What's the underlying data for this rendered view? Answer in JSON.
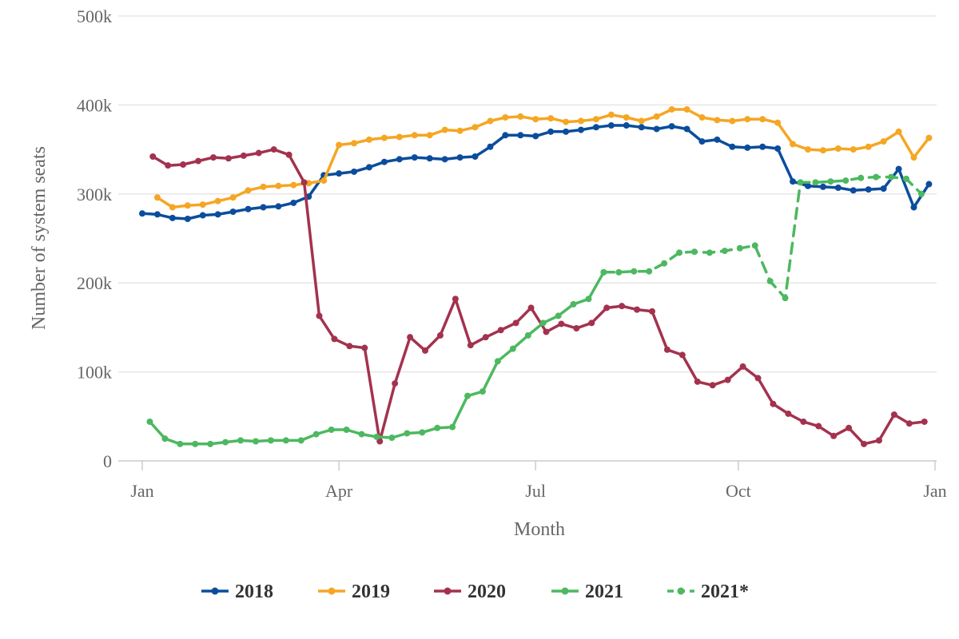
{
  "chart_data": {
    "type": "line",
    "xlabel": "Month",
    "ylabel": "Number of system seats",
    "ylim": [
      0,
      500000
    ],
    "y_ticks": [
      {
        "value": 0,
        "label": "0"
      },
      {
        "value": 100000,
        "label": "100k"
      },
      {
        "value": 200000,
        "label": "200k"
      },
      {
        "value": 300000,
        "label": "300k"
      },
      {
        "value": 400000,
        "label": "400k"
      },
      {
        "value": 500000,
        "label": "500k"
      }
    ],
    "x_ticks": [
      {
        "week": 0,
        "label": "Jan"
      },
      {
        "week": 13,
        "label": "Apr"
      },
      {
        "week": 26,
        "label": "Jul"
      },
      {
        "week": 39.4,
        "label": "Oct"
      },
      {
        "week": 52.4,
        "label": "Jan"
      }
    ],
    "x_unit": "week of year",
    "grid": "horizontal",
    "legend_position": "bottom",
    "series": [
      {
        "name": "2018",
        "color": "#0b4d9c",
        "dashed": false,
        "x": [
          0,
          1,
          2,
          3,
          4,
          5,
          6,
          7,
          8,
          9,
          10,
          11,
          12,
          13,
          14,
          15,
          16,
          17,
          18,
          19,
          20,
          21,
          22,
          23,
          24,
          25,
          26,
          27,
          28,
          29,
          30,
          31,
          32,
          33,
          34,
          35,
          36,
          37,
          38,
          39,
          40,
          41,
          42,
          43,
          44,
          45,
          46,
          47,
          48,
          49,
          50,
          51,
          52
        ],
        "values": [
          278000,
          277000,
          273000,
          272000,
          276000,
          277000,
          280000,
          283000,
          285000,
          286000,
          290000,
          297000,
          321000,
          323000,
          325000,
          330000,
          336000,
          339000,
          341000,
          340000,
          339000,
          341000,
          342000,
          353000,
          366000,
          366000,
          365000,
          370000,
          370000,
          372000,
          375000,
          377000,
          377000,
          375000,
          373000,
          376000,
          373000,
          359000,
          361000,
          353000,
          352000,
          353000,
          351000,
          314000,
          309000,
          308000,
          307000,
          304000,
          305000,
          306000,
          328000,
          285000,
          311000
        ]
      },
      {
        "name": "2019",
        "color": "#f5a623",
        "dashed": false,
        "x": [
          1,
          2,
          3,
          4,
          5,
          6,
          7,
          8,
          9,
          10,
          11,
          12,
          13,
          14,
          15,
          16,
          17,
          18,
          19,
          20,
          21,
          22,
          23,
          24,
          25,
          26,
          27,
          28,
          29,
          30,
          31,
          32,
          33,
          34,
          35,
          36,
          37,
          38,
          39,
          40,
          41,
          42,
          43,
          44,
          45,
          46,
          47,
          48,
          49,
          50,
          51,
          52
        ],
        "values": [
          296000,
          285000,
          287000,
          288000,
          292000,
          296000,
          304000,
          308000,
          309000,
          310000,
          312000,
          315000,
          355000,
          357000,
          361000,
          363000,
          364000,
          366000,
          366000,
          372000,
          371000,
          375000,
          382000,
          386000,
          387000,
          384000,
          385000,
          381000,
          382000,
          384000,
          389000,
          386000,
          382000,
          387000,
          395000,
          395000,
          386000,
          383000,
          382000,
          384000,
          384000,
          380000,
          356000,
          350000,
          349000,
          351000,
          350000,
          353000,
          359000,
          370000,
          341000,
          363000
        ]
      },
      {
        "name": "2020",
        "color": "#a3324e",
        "dashed": false,
        "x": [
          0.7,
          1.7,
          2.7,
          3.7,
          4.7,
          5.7,
          6.7,
          7.7,
          8.7,
          9.7,
          10.7,
          11.7,
          12.7,
          13.7,
          14.7,
          15.7,
          16.7,
          17.7,
          18.7,
          19.7,
          20.7,
          21.7,
          22.7,
          23.7,
          24.7,
          25.7,
          26.7,
          27.7,
          28.7,
          29.7,
          30.7,
          31.7,
          32.7,
          33.7,
          34.7,
          35.7,
          36.7,
          37.7,
          38.7,
          39.7,
          40.7,
          41.7,
          42.7,
          43.7,
          44.7,
          45.7,
          46.7,
          47.7,
          48.7,
          49.7,
          50.7,
          51.7
        ],
        "values": [
          342000,
          332000,
          333000,
          337000,
          341000,
          340000,
          343000,
          346000,
          350000,
          344000,
          313000,
          163000,
          137000,
          129000,
          127000,
          22000,
          87000,
          139000,
          124000,
          141000,
          182000,
          130000,
          139000,
          147000,
          155000,
          172000,
          145000,
          154000,
          149000,
          155000,
          172000,
          174000,
          170000,
          168000,
          125000,
          119000,
          89000,
          85000,
          91000,
          106000,
          93000,
          64000,
          53000,
          44000,
          39000,
          28000,
          37000,
          19000,
          23000,
          52000,
          42000,
          44000
        ]
      },
      {
        "name": "2021",
        "color": "#4db860",
        "dashed": false,
        "x": [
          0.5,
          1.5,
          2.5,
          3.5,
          4.5,
          5.5,
          6.5,
          7.5,
          8.5,
          9.5,
          10.5,
          11.5,
          12.5,
          13.5,
          14.5,
          15.5,
          16.5,
          17.5,
          18.5,
          19.5,
          20.5,
          21.5,
          22.5,
          23.5,
          24.5,
          25.5,
          26.5,
          27.5,
          28.5,
          29.5,
          30.5
        ],
        "values": [
          44000,
          25000,
          19000,
          19000,
          19000,
          21000,
          23000,
          22000,
          23000,
          23000,
          23000,
          30000,
          35000,
          35000,
          30000,
          27000,
          26000,
          31000,
          32000,
          37000,
          38000,
          73000,
          78000,
          112000,
          126000,
          141000,
          155000,
          163000,
          176000,
          182000,
          212000
        ]
      },
      {
        "name": "2021*",
        "color": "#4db860",
        "dashed": true,
        "x": [
          30.5,
          31.5,
          32.5,
          33.5,
          34.5,
          35.5,
          36.5,
          37.5,
          38.5,
          39.5,
          40.5,
          41.5,
          42.5,
          43.5,
          44.5,
          45.5,
          46.5,
          47.5,
          48.5,
          49.5,
          50.5,
          51.5
        ],
        "values": [
          212000,
          212000,
          213000,
          213000,
          222000,
          234000,
          235000,
          234000,
          236000,
          239000,
          242000,
          202000,
          183000,
          313000,
          313000,
          314000,
          315000,
          318000,
          319000,
          319000,
          317000,
          300000
        ]
      }
    ]
  }
}
